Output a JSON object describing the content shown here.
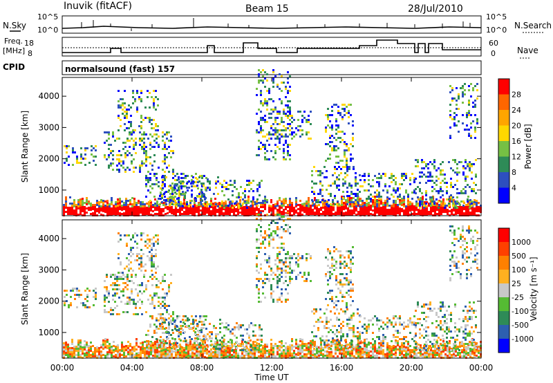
{
  "header": {
    "station": "Inuvik (fitACF)",
    "beam": "Beam 15",
    "date": "28/Jul/2010"
  },
  "panels": {
    "nsky": {
      "label": "N.Sky",
      "ticks": [
        "10^5",
        "10^0"
      ]
    },
    "nsearch": {
      "label": "N.Search",
      "ticks": [
        "10^5",
        "10^0"
      ]
    },
    "freq": {
      "label_line1": "Freq.",
      "label_line2": "[MHz]",
      "ticks": [
        "18",
        "8"
      ]
    },
    "nave": {
      "label": "Nave",
      "ticks": [
        "60",
        "0"
      ]
    },
    "cpid": {
      "label": "CPID",
      "value": "normalsound (fast) 157"
    }
  },
  "chart_data": [
    {
      "type": "heatmap",
      "title": "Power",
      "ylabel": "Slant Range [km]",
      "xlabel": "",
      "xlim": [
        "00:00",
        "00:00"
      ],
      "ylim": [
        180,
        4600
      ],
      "yticks": [
        "1000",
        "2000",
        "3000",
        "4000"
      ],
      "colorbar": {
        "label": "Power [dB]",
        "ticks": [
          "28",
          "24",
          "20",
          "16",
          "12",
          "8",
          "4"
        ],
        "colors": [
          "#0000ff",
          "#2d4fbf",
          "#2e8b57",
          "#76c044",
          "#ffd700",
          "#ffa500",
          "#ff6600",
          "#ff0000"
        ]
      }
    },
    {
      "type": "heatmap",
      "title": "Velocity",
      "ylabel": "Slant Range [km]",
      "xlabel": "Time UT",
      "xlim": [
        "00:00",
        "00:00"
      ],
      "ylim": [
        180,
        4600
      ],
      "yticks": [
        "1000",
        "2000",
        "3000",
        "4000"
      ],
      "xticks": [
        "00:00",
        "04:00",
        "08:00",
        "12:00",
        "16:00",
        "20:00",
        "00:00"
      ],
      "colorbar": {
        "label": "Velocity [m s⁻¹]",
        "ticks": [
          "1000",
          "500",
          "100",
          "25",
          "-25",
          "-100",
          "-500",
          "-1000"
        ],
        "colors": [
          "#0000ff",
          "#2d5fb0",
          "#2e8b57",
          "#55bb33",
          "#c8c8c8",
          "#ffb020",
          "#ff8000",
          "#ff4000",
          "#ff0000"
        ]
      }
    }
  ]
}
